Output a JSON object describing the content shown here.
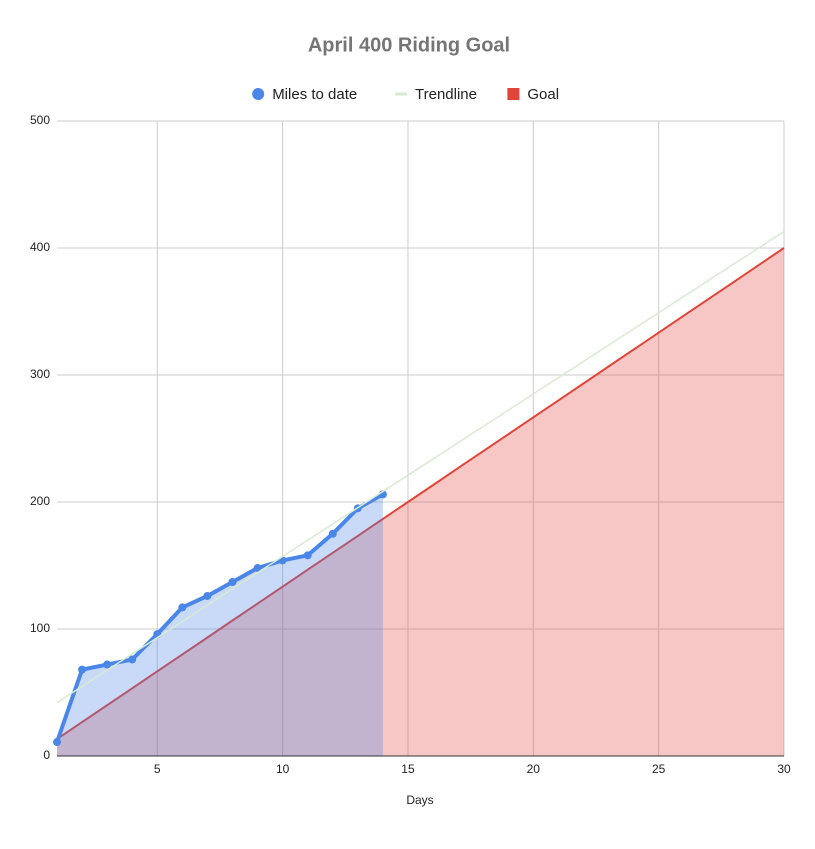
{
  "chart_data": {
    "type": "area-line",
    "title": "April 400 Riding Goal",
    "x_label": "Days",
    "xlim": [
      1,
      30
    ],
    "xticks": [
      5,
      10,
      15,
      20,
      25,
      30
    ],
    "ylim": [
      0,
      500
    ],
    "yticks": [
      0,
      100,
      200,
      300,
      400,
      500
    ],
    "grid": true,
    "legend": "top",
    "series": [
      {
        "name": "Miles to date",
        "color": "#4a86e8",
        "style": "area-points",
        "x": [
          1,
          2,
          3,
          4,
          5,
          6,
          7,
          8,
          9,
          10,
          11,
          12,
          13,
          14
        ],
        "values": [
          11,
          68,
          72,
          76,
          96,
          117,
          126,
          137,
          148,
          154,
          158,
          175,
          195,
          206
        ]
      },
      {
        "name": "Trendline",
        "color": "#d9ead3",
        "style": "line",
        "x": [
          1,
          30
        ],
        "values": [
          42,
          413
        ]
      },
      {
        "name": "Goal",
        "color": "#e0443a",
        "style": "area",
        "x": [
          1,
          2,
          3,
          4,
          5,
          6,
          7,
          8,
          9,
          10,
          11,
          12,
          13,
          14,
          15,
          16,
          17,
          18,
          19,
          20,
          21,
          22,
          23,
          24,
          25,
          26,
          27,
          28,
          29,
          30
        ],
        "values": [
          13.3,
          26.7,
          40,
          53.3,
          66.7,
          80,
          93.3,
          106.7,
          120,
          133.3,
          146.7,
          160,
          173.3,
          186.7,
          200,
          213.3,
          226.7,
          240,
          253.3,
          266.7,
          280,
          293.3,
          306.7,
          320,
          333.3,
          346.7,
          360,
          373.3,
          386.7,
          400
        ]
      }
    ]
  }
}
